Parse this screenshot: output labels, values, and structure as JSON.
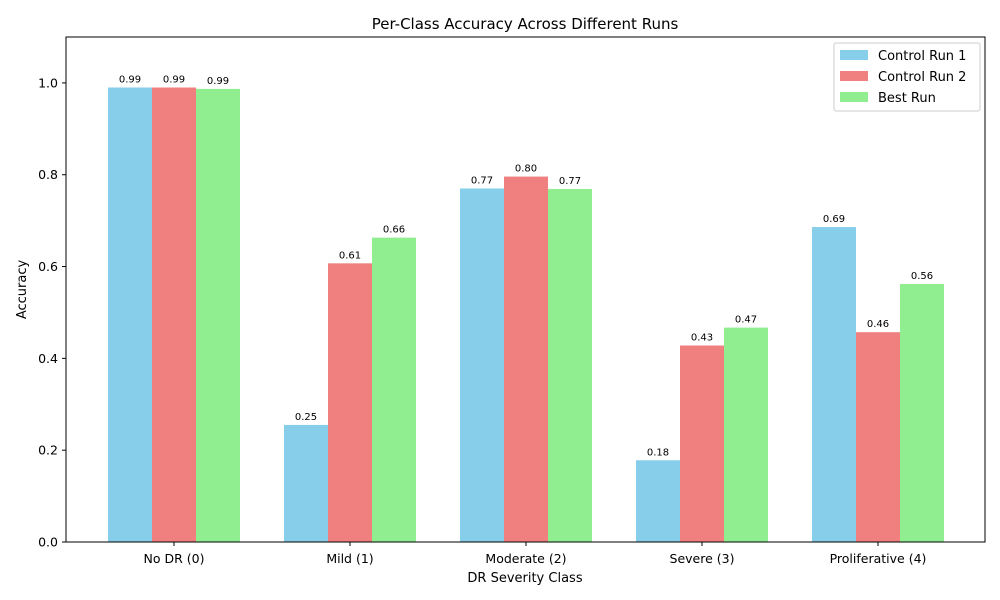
{
  "chart_data": {
    "type": "bar",
    "title": "Per-Class Accuracy Across Different Runs",
    "xlabel": "DR Severity Class",
    "ylabel": "Accuracy",
    "categories": [
      "No DR (0)",
      "Mild (1)",
      "Moderate (2)",
      "Severe (3)",
      "Proliferative (4)"
    ],
    "series": [
      {
        "name": "Control Run 1",
        "color": "#87ceeb",
        "values": [
          0.99,
          0.255,
          0.77,
          0.178,
          0.686
        ],
        "labels": [
          "0.99",
          "0.25",
          "0.77",
          "0.18",
          "0.69"
        ]
      },
      {
        "name": "Control Run 2",
        "color": "#f08080",
        "values": [
          0.99,
          0.607,
          0.796,
          0.428,
          0.457
        ],
        "labels": [
          "0.99",
          "0.61",
          "0.80",
          "0.43",
          "0.46"
        ]
      },
      {
        "name": "Best Run",
        "color": "#90ee90",
        "values": [
          0.987,
          0.663,
          0.769,
          0.467,
          0.562
        ],
        "labels": [
          "0.99",
          "0.66",
          "0.77",
          "0.47",
          "0.56"
        ]
      }
    ],
    "ylim": [
      0,
      1.1
    ],
    "yticks": [
      0.0,
      0.2,
      0.4,
      0.6,
      0.8,
      1.0
    ],
    "ytick_labels": [
      "0.0",
      "0.2",
      "0.4",
      "0.6",
      "0.8",
      "1.0"
    ],
    "grid": false,
    "legend_position": "top-right"
  }
}
